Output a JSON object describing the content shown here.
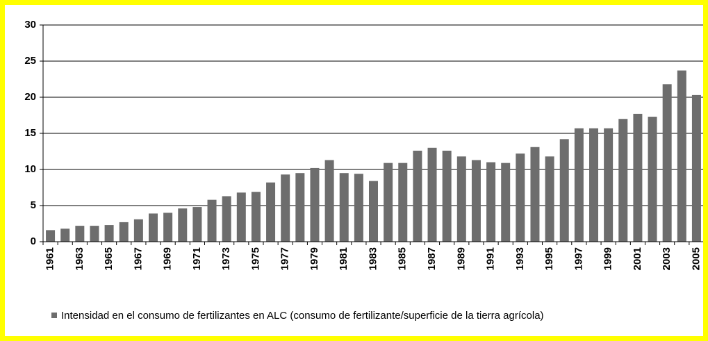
{
  "chart_data": {
    "type": "bar",
    "categories": [
      "1961",
      null,
      "1963",
      null,
      "1965",
      null,
      "1967",
      null,
      "1969",
      null,
      "1971",
      null,
      "1973",
      null,
      "1975",
      null,
      "1977",
      null,
      "1979",
      null,
      "1981",
      null,
      "1983",
      null,
      "1985",
      null,
      "1987",
      null,
      "1989",
      null,
      "1991",
      null,
      "1993",
      null,
      "1995",
      null,
      "1997",
      null,
      "1999",
      null,
      "2001",
      null,
      "2003",
      null,
      "2005"
    ],
    "series": [
      {
        "name": "Intensidad en el consumo de fertilizantes en ALC (consumo de fertilizante/superficie de la tierra agrícola)",
        "color": "#6d6d6d",
        "values": [
          1.6,
          1.8,
          2.2,
          2.2,
          2.3,
          2.7,
          3.1,
          3.9,
          4.0,
          4.6,
          4.8,
          5.8,
          6.3,
          6.8,
          6.9,
          8.2,
          9.3,
          9.5,
          10.2,
          11.3,
          9.5,
          9.4,
          8.4,
          10.9,
          10.9,
          12.6,
          13.0,
          12.6,
          11.8,
          11.3,
          11.0,
          10.9,
          12.2,
          13.1,
          11.8,
          14.2,
          15.7,
          15.7,
          15.7,
          17.0,
          17.7,
          17.3,
          21.8,
          23.7,
          20.3
        ]
      }
    ],
    "ylim": [
      0,
      30
    ],
    "yticks": [
      0,
      5,
      10,
      15,
      20,
      25,
      30
    ],
    "grid": true,
    "legend": "bottom"
  }
}
